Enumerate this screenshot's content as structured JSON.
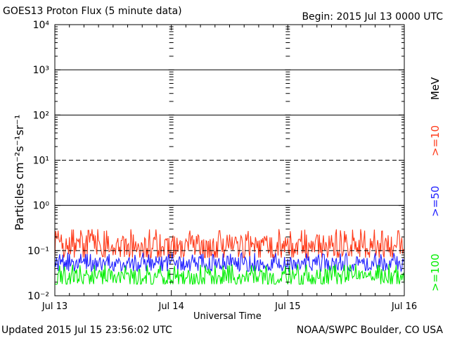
{
  "header": {
    "title": "GOES13 Proton Flux (5 minute data)",
    "begin": "Begin: 2015 Jul 13 0000 UTC"
  },
  "footer": {
    "updated": "Updated 2015 Jul 15 23:56:02 UTC",
    "credit": "NOAA/SWPC Boulder, CO USA"
  },
  "legend": {
    "p10": ">=10",
    "p50": ">=50",
    "p100": ">=100",
    "unit": "MeV"
  },
  "colors": {
    "p10": "#ff3a1a",
    "p50": "#2020ff",
    "p100": "#00ee00"
  },
  "chart_data": {
    "type": "line",
    "title": "GOES13 Proton Flux (5 minute data)",
    "xlabel": "Universal Time",
    "ylabel": "Particles cm⁻²s⁻¹sr⁻¹",
    "yscale": "log",
    "ylim": [
      0.01,
      10000
    ],
    "y_ticks": [
      "10⁻²",
      "10⁻¹",
      "10⁰",
      "10¹",
      "10²",
      "10³",
      "10⁴"
    ],
    "x_ticks": [
      "Jul 13",
      "Jul 14",
      "Jul 15",
      "Jul 16"
    ],
    "x_range_days": [
      0,
      3
    ],
    "series": [
      {
        "name": ">=10 MeV",
        "color": "#ff3a1a",
        "typical_value": 0.12,
        "range": [
          0.07,
          0.3
        ]
      },
      {
        "name": ">=50 MeV",
        "color": "#2020ff",
        "typical_value": 0.05,
        "range": [
          0.035,
          0.09
        ]
      },
      {
        "name": ">=100 MeV",
        "color": "#00ee00",
        "typical_value": 0.025,
        "range": [
          0.018,
          0.05
        ]
      }
    ],
    "reference_lines": [
      {
        "value": 0.1,
        "style": "dashed"
      },
      {
        "value": 10,
        "style": "dashed"
      }
    ],
    "grid": true
  }
}
